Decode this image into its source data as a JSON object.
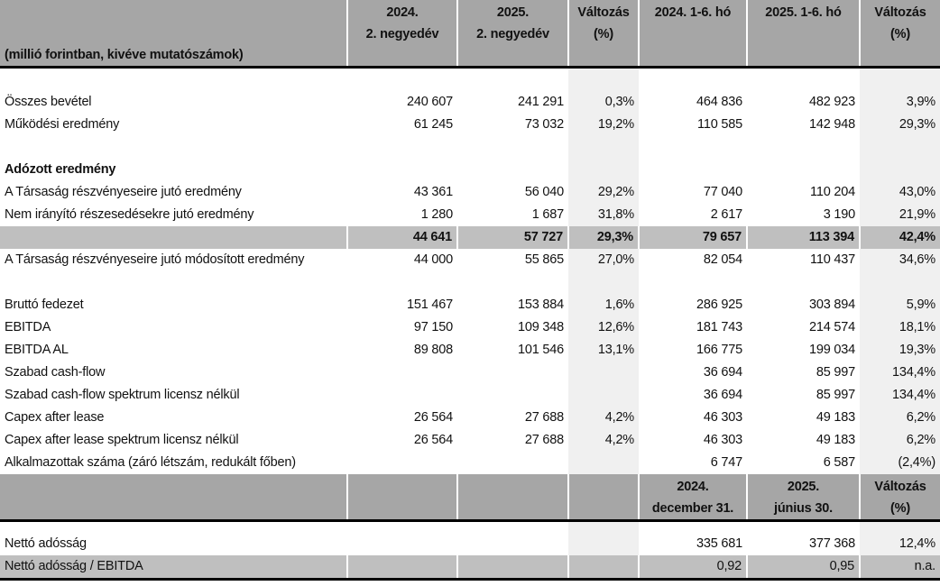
{
  "header": {
    "unit_note": "(millió forintban, kivéve mutatószámok)",
    "columns": [
      "2024.\n2. negyedév",
      "2025.\n2. negyedév",
      "Változás\n(%)",
      "2024. 1-6. hó",
      "2025. 1-6. hó",
      "Változás\n(%)"
    ]
  },
  "rows": [
    {
      "type": "blank"
    },
    {
      "label": "Összes bevétel",
      "values": [
        "240 607",
        "241 291",
        "0,3%",
        "464 836",
        "482 923",
        "3,9%"
      ]
    },
    {
      "label": "Működési eredmény",
      "values": [
        "61 245",
        "73 032",
        "19,2%",
        "110 585",
        "142 948",
        "29,3%"
      ]
    },
    {
      "type": "blank"
    },
    {
      "type": "bold",
      "label": "Adózott eredmény",
      "values": [
        "",
        "",
        "",
        "",
        "",
        ""
      ]
    },
    {
      "label": "A Társaság részvényeseire jutó eredmény",
      "values": [
        "43 361",
        "56 040",
        "29,2%",
        "77 040",
        "110 204",
        "43,0%"
      ]
    },
    {
      "label": "Nem irányító részesedésekre jutó eredmény",
      "values": [
        "1 280",
        "1 687",
        "31,8%",
        "2 617",
        "3 190",
        "21,9%"
      ]
    },
    {
      "type": "sub",
      "label": "",
      "values": [
        "44 641",
        "57 727",
        "29,3%",
        "79 657",
        "113 394",
        "42,4%"
      ]
    },
    {
      "label": "A Társaság részvényeseire jutó módosított eredmény",
      "values": [
        "44 000",
        "55 865",
        "27,0%",
        "82 054",
        "110 437",
        "34,6%"
      ]
    },
    {
      "type": "blank"
    },
    {
      "label": "Bruttó fedezet",
      "values": [
        "151 467",
        "153 884",
        "1,6%",
        "286 925",
        "303 894",
        "5,9%"
      ]
    },
    {
      "label": "EBITDA",
      "values": [
        "97 150",
        "109 348",
        "12,6%",
        "181 743",
        "214 574",
        "18,1%"
      ]
    },
    {
      "label": "EBITDA AL",
      "values": [
        "89 808",
        "101 546",
        "13,1%",
        "166 775",
        "199 034",
        "19,3%"
      ]
    },
    {
      "label": "Szabad cash-flow",
      "values": [
        "",
        "",
        "",
        "36 694",
        "85 997",
        "134,4%"
      ]
    },
    {
      "label": "Szabad cash-flow spektrum licensz nélkül",
      "values": [
        "",
        "",
        "",
        "36 694",
        "85 997",
        "134,4%"
      ]
    },
    {
      "label": "Capex after lease",
      "values": [
        "26 564",
        "27 688",
        "4,2%",
        "46 303",
        "49 183",
        "6,2%"
      ]
    },
    {
      "label": "Capex after lease spektrum licensz nélkül",
      "values": [
        "26 564",
        "27 688",
        "4,2%",
        "46 303",
        "49 183",
        "6,2%"
      ]
    },
    {
      "label": "Alkalmazottak száma (záró létszám, redukált főben)",
      "values": [
        "",
        "",
        "",
        "6 747",
        "6 587",
        "(2,4%)"
      ]
    }
  ],
  "header2": {
    "columns": [
      "",
      "",
      "",
      "2024.\ndecember 31.",
      "2025.\njúnius 30.",
      "Változás\n(%)"
    ]
  },
  "rows2": [
    {
      "type": "blank2"
    },
    {
      "label": "Nettó adósság",
      "values": [
        "",
        "",
        "",
        "335 681",
        "377 368",
        "12,4%"
      ]
    },
    {
      "type": "last",
      "label": "Nettó adósság / EBITDA",
      "values": [
        "",
        "",
        "",
        "0,92",
        "0,95",
        "n.a."
      ]
    }
  ],
  "colors": {
    "header_bg": "#a6a6a6",
    "subtotal_bg": "#bfbfbf",
    "change_col_bg": "#f0f0f0"
  }
}
